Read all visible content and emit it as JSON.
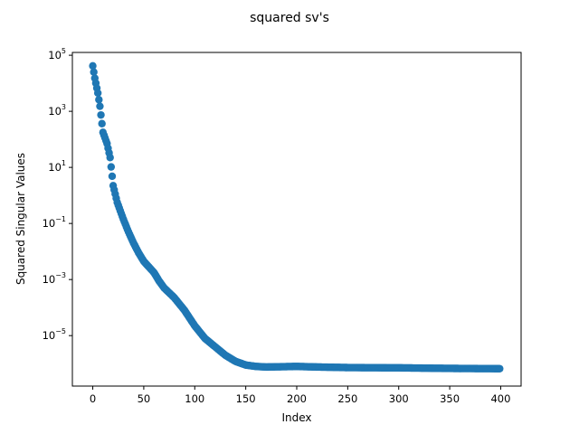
{
  "chart_data": {
    "type": "scatter",
    "title": "squared sv's",
    "xlabel": "Index",
    "ylabel": "Squared Singular Values",
    "xlim": [
      -20,
      420
    ],
    "ylim_log10": [
      -6.8,
      5.1
    ],
    "yscale": "log",
    "grid": false,
    "marker_color": "#1f77b4",
    "x_ticks": [
      {
        "value": 0,
        "label": "0"
      },
      {
        "value": 50,
        "label": "50"
      },
      {
        "value": 100,
        "label": "100"
      },
      {
        "value": 150,
        "label": "150"
      },
      {
        "value": 200,
        "label": "200"
      },
      {
        "value": 250,
        "label": "250"
      },
      {
        "value": 300,
        "label": "300"
      },
      {
        "value": 350,
        "label": "350"
      },
      {
        "value": 400,
        "label": "400"
      }
    ],
    "y_ticks": [
      {
        "value": 100000,
        "base": "10",
        "exp": "5"
      },
      {
        "value": 1000,
        "base": "10",
        "exp": "3"
      },
      {
        "value": 10,
        "base": "10",
        "exp": "1"
      },
      {
        "value": 0.1,
        "base": "10",
        "exp": "−1"
      },
      {
        "value": 0.001,
        "base": "10",
        "exp": "−3"
      },
      {
        "value": 1e-05,
        "base": "10",
        "exp": "−5"
      }
    ],
    "series_sampling": {
      "x_start": 0,
      "x_end": 399,
      "x_step": 1,
      "description_points_log10": [
        [
          0,
          4.62
        ],
        [
          2,
          4.18
        ],
        [
          5,
          3.65
        ],
        [
          7,
          3.18
        ],
        [
          10,
          2.25
        ],
        [
          14,
          1.85
        ],
        [
          17,
          1.35
        ],
        [
          20,
          0.35
        ],
        [
          24,
          -0.25
        ],
        [
          27,
          -0.55
        ],
        [
          30,
          -0.85
        ],
        [
          35,
          -1.3
        ],
        [
          40,
          -1.7
        ],
        [
          45,
          -2.05
        ],
        [
          50,
          -2.35
        ],
        [
          55,
          -2.55
        ],
        [
          60,
          -2.75
        ],
        [
          65,
          -3.05
        ],
        [
          70,
          -3.3
        ],
        [
          80,
          -3.65
        ],
        [
          90,
          -4.1
        ],
        [
          100,
          -4.65
        ],
        [
          110,
          -5.1
        ],
        [
          120,
          -5.4
        ],
        [
          130,
          -5.7
        ],
        [
          140,
          -5.92
        ],
        [
          150,
          -6.05
        ],
        [
          160,
          -6.1
        ],
        [
          170,
          -6.12
        ],
        [
          200,
          -6.1
        ],
        [
          220,
          -6.12
        ],
        [
          250,
          -6.14
        ],
        [
          300,
          -6.15
        ],
        [
          350,
          -6.17
        ],
        [
          400,
          -6.18
        ]
      ]
    }
  }
}
